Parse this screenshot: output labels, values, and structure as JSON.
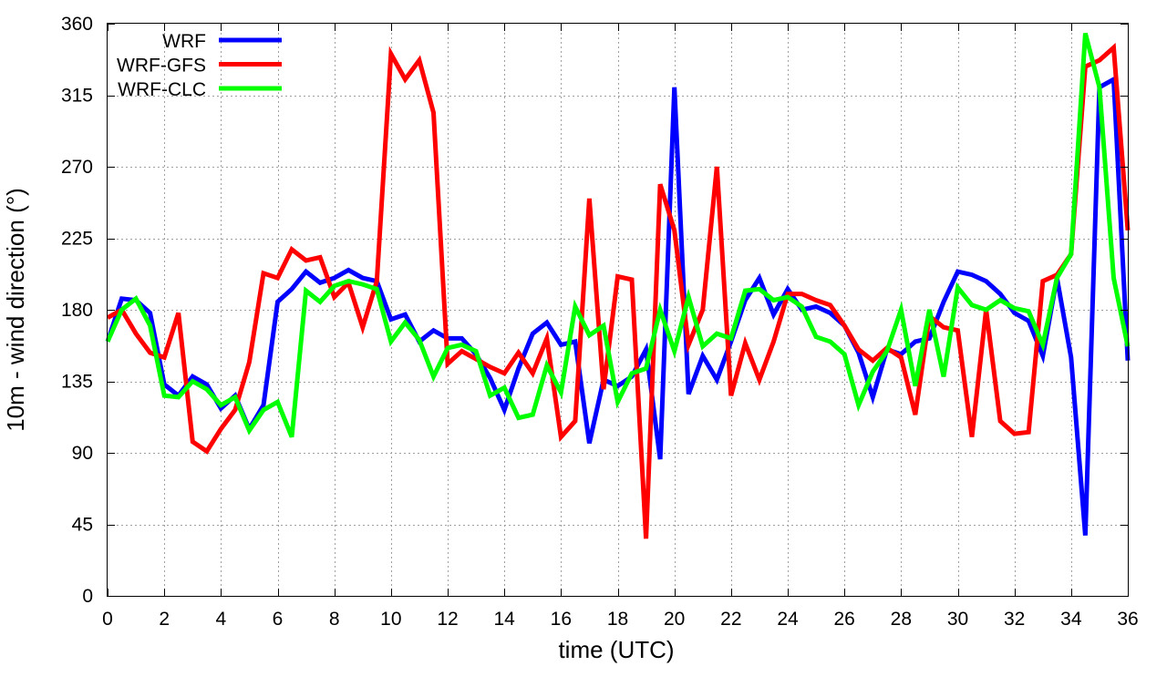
{
  "chart_data": {
    "type": "line",
    "title": "",
    "xlabel": "time (UTC)",
    "ylabel": "10m - wind direction (°)",
    "xlim": [
      0,
      36
    ],
    "ylim": [
      0,
      360
    ],
    "x_ticks": [
      0,
      2,
      4,
      6,
      8,
      10,
      12,
      14,
      16,
      18,
      20,
      22,
      24,
      26,
      28,
      30,
      32,
      34,
      36
    ],
    "y_ticks": [
      0,
      45,
      90,
      135,
      180,
      225,
      270,
      315,
      360
    ],
    "grid": true,
    "legend_position": "top-left",
    "x": [
      0,
      0.5,
      1,
      1.5,
      2,
      2.5,
      3,
      3.5,
      4,
      4.5,
      5,
      5.5,
      6,
      6.5,
      7,
      7.5,
      8,
      8.5,
      9,
      9.5,
      10,
      10.5,
      11,
      11.5,
      12,
      12.5,
      13,
      13.5,
      14,
      14.5,
      15,
      15.5,
      16,
      16.5,
      17,
      17.5,
      18,
      18.5,
      19,
      19.5,
      20,
      20.5,
      21,
      21.5,
      22,
      22.5,
      23,
      23.5,
      24,
      24.5,
      25,
      25.5,
      26,
      26.5,
      27,
      27.5,
      28,
      28.5,
      29,
      29.5,
      30,
      30.5,
      31,
      31.5,
      32,
      32.5,
      33,
      33.5,
      34,
      34.5,
      35,
      35.5,
      36
    ],
    "series": [
      {
        "name": "WRF",
        "color": "#0000ff",
        "values": [
          160,
          187,
          186,
          178,
          133,
          126,
          138,
          133,
          118,
          126,
          105,
          120,
          185,
          193,
          204,
          197,
          200,
          205,
          200,
          198,
          174,
          177,
          160,
          167,
          162,
          162,
          152,
          137,
          117,
          143,
          165,
          172,
          158,
          160,
          96,
          136,
          132,
          138,
          155,
          86,
          320,
          127,
          151,
          136,
          160,
          186,
          200,
          177,
          193,
          180,
          182,
          178,
          170,
          153,
          125,
          155,
          152,
          160,
          162,
          185,
          204,
          202,
          198,
          190,
          178,
          173,
          151,
          200,
          150,
          38,
          320,
          325,
          148
        ]
      },
      {
        "name": "WRF-GFS",
        "color": "#ff0000",
        "values": [
          175,
          180,
          165,
          153,
          150,
          178,
          97,
          91,
          105,
          117,
          147,
          203,
          200,
          218,
          211,
          213,
          188,
          197,
          169,
          198,
          341,
          325,
          337,
          304,
          146,
          154,
          149,
          144,
          140,
          153,
          140,
          162,
          100,
          110,
          250,
          130,
          201,
          199,
          36,
          259,
          230,
          158,
          180,
          270,
          126,
          159,
          136,
          160,
          190,
          190,
          186,
          183,
          170,
          155,
          148,
          156,
          150,
          114,
          176,
          169,
          167,
          100,
          180,
          110,
          102,
          103,
          198,
          202,
          215,
          333,
          337,
          345,
          230
        ]
      },
      {
        "name": "WRF-CLC",
        "color": "#00ff00",
        "values": [
          160,
          180,
          187,
          170,
          126,
          125,
          135,
          130,
          120,
          125,
          104,
          117,
          122,
          100,
          192,
          185,
          195,
          198,
          196,
          193,
          160,
          172,
          161,
          138,
          156,
          158,
          154,
          126,
          131,
          112,
          114,
          145,
          128,
          182,
          164,
          170,
          122,
          140,
          143,
          180,
          154,
          188,
          157,
          165,
          162,
          192,
          193,
          186,
          188,
          182,
          163,
          160,
          152,
          120,
          141,
          154,
          180,
          132,
          180,
          138,
          194,
          183,
          180,
          186,
          181,
          179,
          158,
          200,
          215,
          354,
          320,
          200,
          157
        ]
      }
    ]
  }
}
